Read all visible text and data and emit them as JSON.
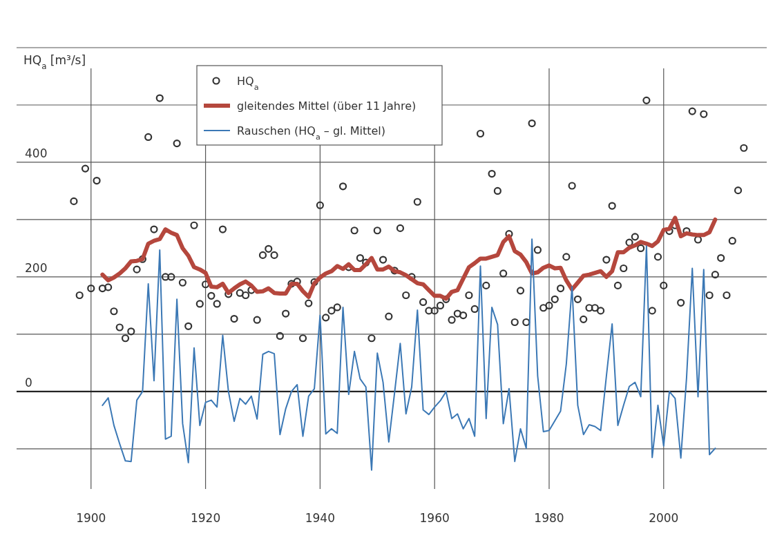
{
  "chart_data": {
    "type": "line",
    "ylabel": "HQ$_{a}$ [m³/s]",
    "xlim": [
      1887,
      2018
    ],
    "ylim": [
      -170,
      600
    ],
    "xticks": [
      1900,
      1920,
      1940,
      1960,
      1980,
      2000
    ],
    "yticks": [
      {
        "value": -100,
        "label": null
      },
      0,
      {
        "value": 100,
        "label": null
      },
      200,
      {
        "value": 300,
        "label": null
      },
      400,
      {
        "value": 500,
        "label": null
      },
      {
        "value": 600,
        "label": null
      }
    ],
    "grid": true,
    "legend": "top left",
    "series": [
      {
        "name": "HQ$_{a}$",
        "type": "scatter",
        "marker": "circle",
        "color": "#333333",
        "x": [
          1897,
          1898,
          1899,
          1900,
          1901,
          1902,
          1903,
          1904,
          1905,
          1906,
          1907,
          1908,
          1909,
          1910,
          1911,
          1912,
          1913,
          1914,
          1915,
          1916,
          1917,
          1918,
          1919,
          1920,
          1921,
          1922,
          1923,
          1924,
          1925,
          1926,
          1927,
          1928,
          1929,
          1930,
          1931,
          1932,
          1933,
          1934,
          1935,
          1936,
          1937,
          1938,
          1939,
          1940,
          1941,
          1942,
          1943,
          1944,
          1945,
          1946,
          1947,
          1948,
          1949,
          1950,
          1951,
          1952,
          1953,
          1954,
          1955,
          1956,
          1957,
          1958,
          1959,
          1960,
          1961,
          1962,
          1963,
          1964,
          1965,
          1966,
          1967,
          1968,
          1969,
          1970,
          1971,
          1972,
          1973,
          1974,
          1975,
          1976,
          1977,
          1978,
          1979,
          1980,
          1981,
          1982,
          1983,
          1984,
          1985,
          1986,
          1987,
          1988,
          1989,
          1990,
          1991,
          1992,
          1993,
          1994,
          1995,
          1996,
          1997,
          1998,
          1999,
          2000,
          2001,
          2002,
          2003,
          2004,
          2005,
          2006,
          2007,
          2008,
          2009,
          2010,
          2011,
          2012,
          2013,
          2014
        ],
        "values": [
          332,
          168,
          389,
          180,
          368,
          180,
          182,
          140,
          112,
          93,
          105,
          213,
          231,
          444,
          283,
          512,
          200,
          200,
          433,
          190,
          114,
          290,
          153,
          187,
          167,
          153,
          283,
          170,
          127,
          172,
          168,
          177,
          125,
          238,
          249,
          238,
          97,
          136,
          188,
          192,
          93,
          154,
          191,
          325,
          129,
          141,
          147,
          358,
          217,
          281,
          233,
          225,
          93,
          281,
          230,
          131,
          211,
          285,
          168,
          200,
          331,
          156,
          141,
          141,
          150,
          161,
          125,
          136,
          133,
          168,
          144,
          450,
          185,
          380,
          350,
          206,
          275,
          121,
          176,
          121,
          468,
          247,
          146,
          150,
          161,
          180,
          235,
          359,
          161,
          126,
          146,
          146,
          141,
          230,
          324,
          185,
          215,
          260,
          270,
          250,
          508,
          141,
          235,
          185,
          280,
          290,
          155,
          280,
          489,
          265,
          484,
          168,
          204,
          233,
          168,
          263,
          351,
          425
        ]
      },
      {
        "name": "gleitendes Mittel (über 11 Jahre)",
        "color": "#b5473d",
        "x": [
          1902,
          1903,
          1904,
          1905,
          1906,
          1907,
          1908,
          1909,
          1910,
          1911,
          1912,
          1913,
          1914,
          1915,
          1916,
          1917,
          1918,
          1919,
          1920,
          1921,
          1922,
          1923,
          1924,
          1925,
          1926,
          1927,
          1928,
          1929,
          1930,
          1931,
          1932,
          1933,
          1934,
          1935,
          1936,
          1937,
          1938,
          1939,
          1940,
          1941,
          1942,
          1943,
          1944,
          1945,
          1946,
          1947,
          1948,
          1949,
          1950,
          1951,
          1952,
          1953,
          1954,
          1955,
          1956,
          1957,
          1958,
          1959,
          1960,
          1961,
          1962,
          1963,
          1964,
          1965,
          1966,
          1967,
          1968,
          1969,
          1970,
          1971,
          1972,
          1973,
          1974,
          1975,
          1976,
          1977,
          1978,
          1979,
          1980,
          1981,
          1982,
          1983,
          1984,
          1985,
          1986,
          1987,
          1988,
          1989,
          1990,
          1991,
          1992,
          1993,
          1994,
          1995,
          1996,
          1997,
          1998,
          1999,
          2000,
          2001,
          2002,
          2003,
          2004,
          2005,
          2006,
          2007,
          2008,
          2009
        ],
        "values": [
          204,
          194,
          199,
          206,
          215,
          227,
          228,
          231,
          258,
          263,
          266,
          283,
          277,
          273,
          250,
          237,
          217,
          213,
          207,
          183,
          182,
          188,
          172,
          180,
          187,
          192,
          185,
          174,
          175,
          180,
          172,
          171,
          171,
          188,
          188,
          175,
          165,
          189,
          199,
          206,
          210,
          219,
          214,
          222,
          212,
          212,
          222,
          233,
          213,
          213,
          218,
          210,
          208,
          203,
          196,
          189,
          187,
          177,
          167,
          167,
          162,
          174,
          177,
          197,
          217,
          224,
          232,
          232,
          235,
          238,
          261,
          271,
          245,
          239,
          226,
          206,
          208,
          216,
          220,
          215,
          216,
          194,
          178,
          190,
          202,
          204,
          207,
          210,
          200,
          210,
          243,
          243,
          251,
          255,
          261,
          258,
          254,
          262,
          282,
          284,
          303,
          271,
          276,
          274,
          273,
          273,
          278,
          300
        ]
      },
      {
        "name": "Rauschen (HQ$_{a}$ – gl. Mittel)",
        "color": "#3b78b5",
        "x": [
          1902,
          1903,
          1904,
          1905,
          1906,
          1907,
          1908,
          1909,
          1910,
          1911,
          1912,
          1913,
          1914,
          1915,
          1916,
          1917,
          1918,
          1919,
          1920,
          1921,
          1922,
          1923,
          1924,
          1925,
          1926,
          1927,
          1928,
          1929,
          1930,
          1931,
          1932,
          1933,
          1934,
          1935,
          1936,
          1937,
          1938,
          1939,
          1940,
          1941,
          1942,
          1943,
          1944,
          1945,
          1946,
          1947,
          1948,
          1949,
          1950,
          1951,
          1952,
          1953,
          1954,
          1955,
          1956,
          1957,
          1958,
          1959,
          1960,
          1961,
          1962,
          1963,
          1964,
          1965,
          1966,
          1967,
          1968,
          1969,
          1970,
          1971,
          1972,
          1973,
          1974,
          1975,
          1976,
          1977,
          1978,
          1979,
          1980,
          1981,
          1982,
          1983,
          1984,
          1985,
          1986,
          1987,
          1988,
          1989,
          1990,
          1991,
          1992,
          1993,
          1994,
          1995,
          1996,
          1997,
          1998,
          1999,
          2000,
          2001,
          2002,
          2003,
          2004,
          2005,
          2006,
          2007,
          2008,
          2009
        ],
        "values": [
          -24,
          -11,
          -59,
          -91,
          -121,
          -122,
          -15,
          0,
          188,
          19,
          247,
          -83,
          -78,
          161,
          -56,
          -124,
          76,
          -59,
          -19,
          -15,
          -27,
          98,
          0,
          -52,
          -12,
          -22,
          -8,
          -48,
          65,
          70,
          66,
          -75,
          -30,
          0,
          12,
          -78,
          -8,
          5,
          133,
          -74,
          -65,
          -73,
          147,
          -5,
          70,
          22,
          8,
          -137,
          67,
          16,
          -88,
          -3,
          84,
          -39,
          8,
          142,
          -32,
          -40,
          -27,
          -16,
          0,
          -47,
          -39,
          -65,
          -47,
          -78,
          219,
          -47,
          147,
          117,
          -56,
          5,
          -122,
          -65,
          -99,
          266,
          27,
          -70,
          -68,
          -51,
          -34,
          48,
          183,
          -24,
          -75,
          -58,
          -61,
          -68,
          27,
          118,
          -59,
          -24,
          9,
          16,
          -9,
          254,
          -115,
          -24,
          -95,
          0,
          -12,
          -116,
          24,
          215,
          -9,
          213,
          -110,
          -99
        ]
      }
    ]
  }
}
